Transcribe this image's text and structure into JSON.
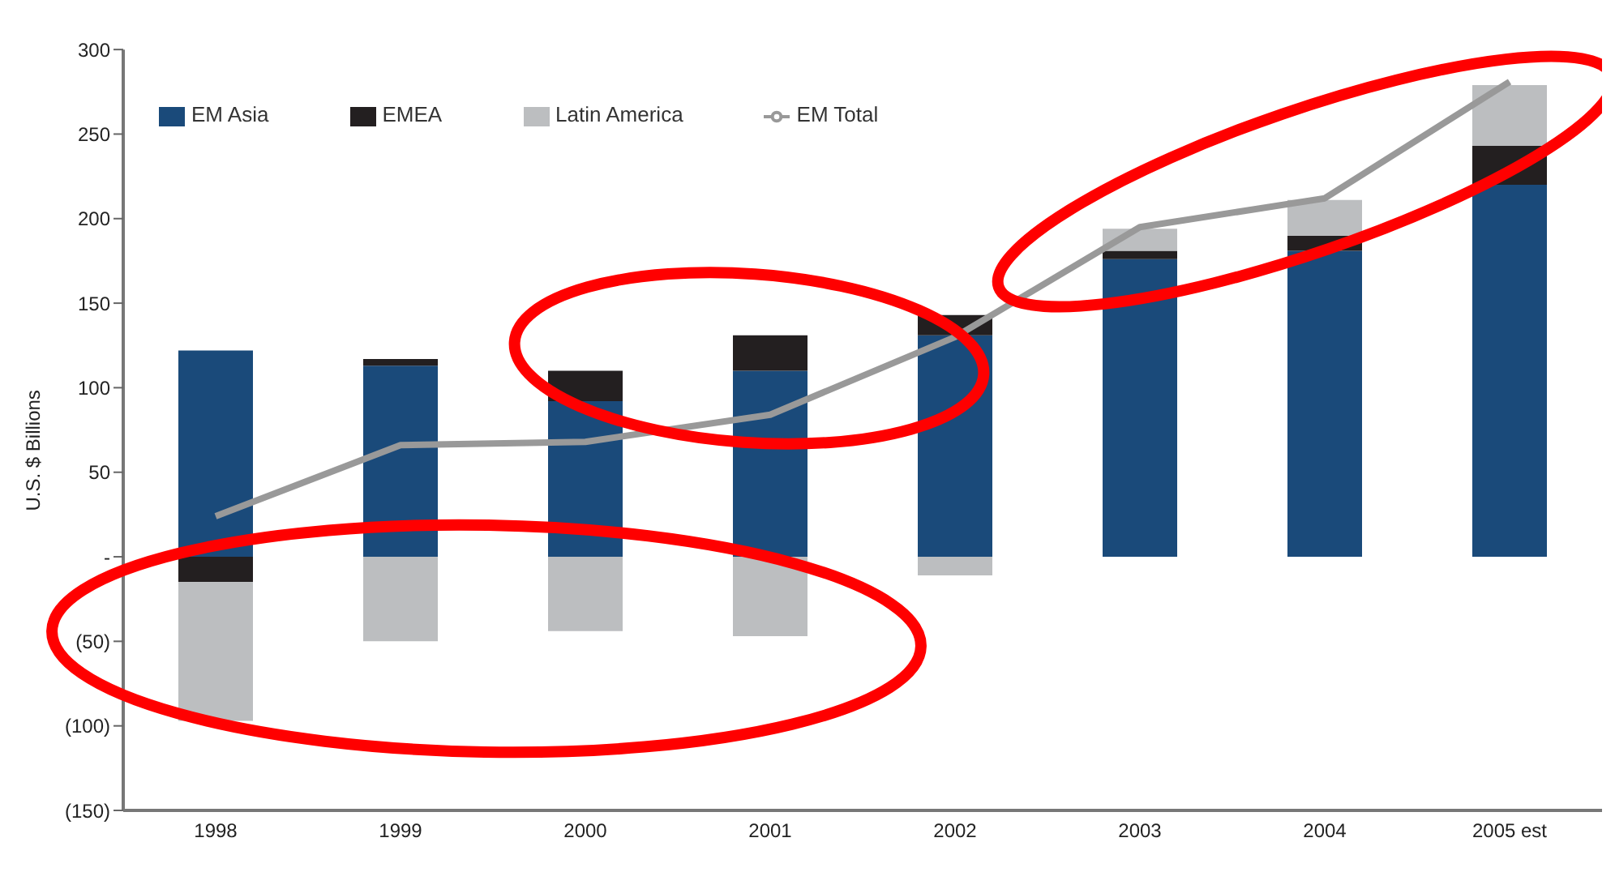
{
  "chart_data": {
    "type": "bar",
    "stacked": true,
    "ylabel": "U.S. $ Billions",
    "categories": [
      "1998",
      "1999",
      "2000",
      "2001",
      "2002",
      "2003",
      "2004",
      "2005 est"
    ],
    "series": [
      {
        "name": "EM Asia",
        "color": "#1a4a7a",
        "values": [
          122,
          113,
          92,
          110,
          131,
          176,
          181,
          220
        ]
      },
      {
        "name": "EMEA",
        "color": "#231f20",
        "values": [
          -15,
          4,
          18,
          21,
          12,
          5,
          9,
          23
        ]
      },
      {
        "name": "Latin America",
        "color": "#bcbec0",
        "values": [
          -82,
          -50,
          -44,
          -47,
          -11,
          13,
          21,
          36
        ]
      },
      {
        "name": "EM Total",
        "type": "line",
        "color": "#999999",
        "values": [
          24,
          66,
          68,
          84,
          130,
          195,
          212,
          281
        ]
      }
    ],
    "ylim": [
      -150,
      300
    ],
    "yticks": [
      300,
      250,
      200,
      150,
      100,
      50,
      {
        "value": 0,
        "label": "-"
      },
      {
        "value": -50,
        "label": "(50)"
      },
      {
        "value": -100,
        "label": "(100)"
      },
      {
        "value": -150,
        "label": "(150)"
      }
    ],
    "grid": false,
    "legend": "top left",
    "marker": "none"
  }
}
